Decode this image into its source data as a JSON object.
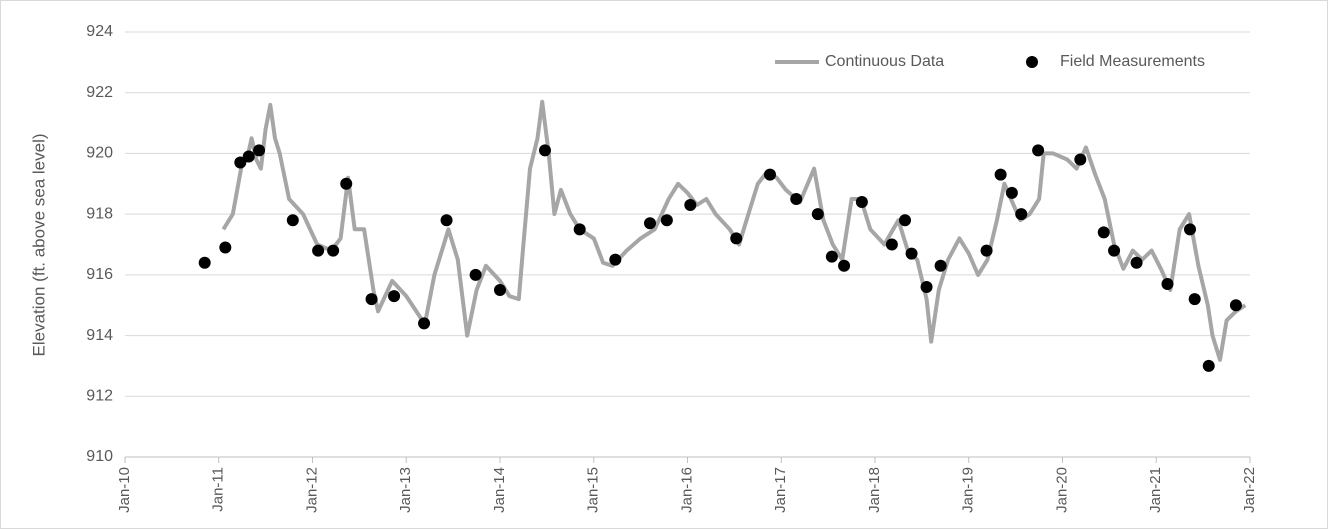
{
  "chart_data": {
    "type": "line",
    "y_label": "Elevation (ft. above sea level)",
    "xlim": [
      2010,
      2022
    ],
    "xticks": [
      {
        "value": 2010,
        "label": "Jan-10"
      },
      {
        "value": 2011,
        "label": "Jan-11"
      },
      {
        "value": 2012,
        "label": "Jan-12"
      },
      {
        "value": 2013,
        "label": "Jan-13"
      },
      {
        "value": 2014,
        "label": "Jan-14"
      },
      {
        "value": 2015,
        "label": "Jan-15"
      },
      {
        "value": 2016,
        "label": "Jan-16"
      },
      {
        "value": 2017,
        "label": "Jan-17"
      },
      {
        "value": 2018,
        "label": "Jan-18"
      },
      {
        "value": 2019,
        "label": "Jan-19"
      },
      {
        "value": 2020,
        "label": "Jan-20"
      },
      {
        "value": 2021,
        "label": "Jan-21"
      },
      {
        "value": 2022,
        "label": "Jan-22"
      }
    ],
    "ylim": [
      910,
      924
    ],
    "yticks": [
      910,
      912,
      914,
      916,
      918,
      920,
      922,
      924
    ],
    "grid": true,
    "legend": "top-right",
    "series": [
      {
        "name": "Continuous Data",
        "type": "line",
        "color": "#a6a6a6",
        "x": [
          2011.05,
          2011.15,
          2011.25,
          2011.3,
          2011.35,
          2011.4,
          2011.45,
          2011.5,
          2011.55,
          2011.6,
          2011.65,
          2011.75,
          2011.9,
          2012.05,
          2012.2,
          2012.3,
          2012.38,
          2012.45,
          2012.55,
          2012.65,
          2012.7,
          2012.85,
          2013.0,
          2013.15,
          2013.2,
          2013.3,
          2013.4,
          2013.45,
          2013.55,
          2013.65,
          2013.75,
          2013.85,
          2014.0,
          2014.1,
          2014.2,
          2014.25,
          2014.32,
          2014.4,
          2014.45,
          2014.52,
          2014.58,
          2014.65,
          2014.75,
          2014.85,
          2015.0,
          2015.1,
          2015.2,
          2015.35,
          2015.5,
          2015.65,
          2015.8,
          2015.9,
          2016.0,
          2016.1,
          2016.2,
          2016.3,
          2016.45,
          2016.55,
          2016.65,
          2016.75,
          2016.85,
          2016.95,
          2017.05,
          2017.2,
          2017.35,
          2017.45,
          2017.55,
          2017.65,
          2017.75,
          2017.85,
          2017.95,
          2018.1,
          2018.25,
          2018.35,
          2018.45,
          2018.55,
          2018.6,
          2018.68,
          2018.78,
          2018.9,
          2019.0,
          2019.1,
          2019.2,
          2019.3,
          2019.38,
          2019.45,
          2019.55,
          2019.65,
          2019.75,
          2019.8,
          2019.9,
          2020.05,
          2020.15,
          2020.25,
          2020.35,
          2020.45,
          2020.55,
          2020.65,
          2020.75,
          2020.85,
          2020.95,
          2021.05,
          2021.15,
          2021.25,
          2021.35,
          2021.45,
          2021.55,
          2021.6,
          2021.68,
          2021.75,
          2021.85,
          2021.95
        ],
        "values": [
          917.5,
          918,
          919.7,
          919.8,
          920.5,
          919.8,
          919.5,
          920.8,
          921.6,
          920.5,
          920,
          918.5,
          918,
          917,
          916.8,
          917.2,
          919.2,
          917.5,
          917.5,
          915.5,
          914.8,
          915.8,
          915.3,
          914.6,
          914.4,
          916,
          917,
          917.5,
          916.5,
          914,
          915.5,
          916.3,
          915.8,
          915.3,
          915.2,
          917,
          919.5,
          920.5,
          921.7,
          920,
          918,
          918.8,
          918,
          917.5,
          917.2,
          916.4,
          916.3,
          916.8,
          917.2,
          917.5,
          918.5,
          919,
          918.7,
          918.3,
          918.5,
          918,
          917.5,
          917,
          918,
          919,
          919.4,
          919.2,
          918.8,
          918.4,
          919.5,
          917.8,
          917,
          916.5,
          918.5,
          918.5,
          917.5,
          917,
          917.8,
          916.8,
          916.5,
          915.2,
          913.8,
          915.5,
          916.5,
          917.2,
          916.7,
          916,
          916.5,
          917.8,
          919,
          918.5,
          917.8,
          918,
          918.5,
          920,
          920,
          919.8,
          919.5,
          920.2,
          919.3,
          918.5,
          917,
          916.2,
          916.8,
          916.5,
          916.8,
          916.2,
          915.5,
          917.5,
          918,
          916.3,
          915,
          914,
          913.2,
          914.5,
          914.8,
          915
        ]
      },
      {
        "name": "Field Measurements",
        "type": "scatter",
        "color": "#000000",
        "x": [
          2010.85,
          2011.07,
          2011.23,
          2011.32,
          2011.43,
          2011.79,
          2012.06,
          2012.22,
          2012.36,
          2012.63,
          2012.87,
          2013.19,
          2013.43,
          2013.74,
          2014.0,
          2014.48,
          2014.85,
          2015.23,
          2015.6,
          2015.78,
          2016.03,
          2016.52,
          2016.88,
          2017.16,
          2017.39,
          2017.54,
          2017.67,
          2017.86,
          2018.18,
          2018.32,
          2018.39,
          2018.55,
          2018.7,
          2019.19,
          2019.34,
          2019.46,
          2019.56,
          2019.74,
          2020.19,
          2020.44,
          2020.55,
          2020.79,
          2021.12,
          2021.36,
          2021.41,
          2021.56,
          2021.85
        ],
        "values": [
          916.4,
          916.9,
          919.7,
          919.9,
          920.1,
          917.8,
          916.8,
          916.8,
          919.0,
          915.2,
          915.3,
          914.4,
          917.8,
          916.0,
          915.5,
          920.1,
          917.5,
          916.5,
          917.7,
          917.8,
          918.3,
          917.2,
          919.3,
          918.5,
          918.0,
          916.6,
          916.3,
          918.4,
          917.0,
          917.8,
          916.7,
          915.6,
          916.3,
          916.8,
          919.3,
          918.7,
          918.0,
          920.1,
          919.8,
          917.4,
          916.8,
          916.4,
          915.7,
          917.5,
          915.2,
          913.0,
          915.0
        ]
      }
    ]
  }
}
